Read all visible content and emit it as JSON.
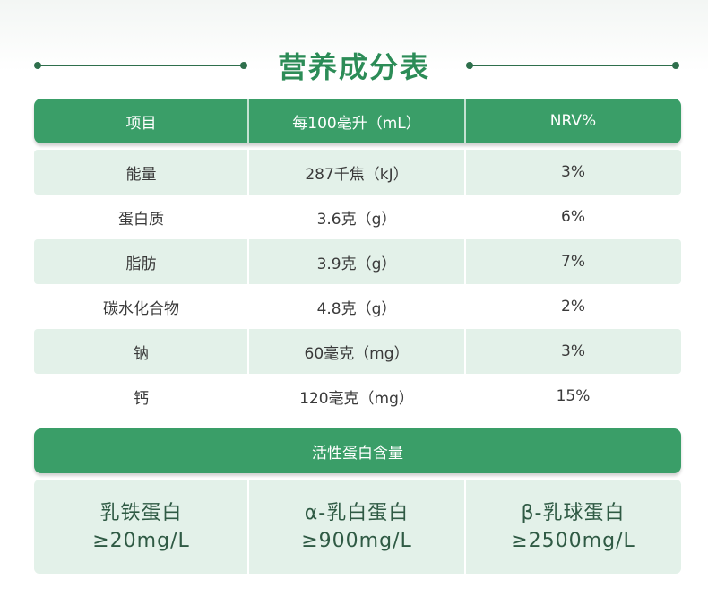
{
  "title": "营养成分表",
  "table": {
    "header": [
      "项目",
      "每100毫升（mL）",
      "NRV%"
    ],
    "rows": [
      [
        "能量",
        "287千焦（kJ）",
        "3%"
      ],
      [
        "蛋白质",
        "3.6克（g）",
        "6%"
      ],
      [
        "脂肪",
        "3.9克（g）",
        "7%"
      ],
      [
        "碳水化合物",
        "4.8克（g）",
        "2%"
      ],
      [
        "钠",
        "60毫克（mg）",
        "3%"
      ],
      [
        "钙",
        "120毫克（mg）",
        "15%"
      ]
    ]
  },
  "active_protein": {
    "title": "活性蛋白含量",
    "items": [
      {
        "name": "乳铁蛋白",
        "value": "≥20mg/L"
      },
      {
        "name": "α-乳白蛋白",
        "value": "≥900mg/L"
      },
      {
        "name": "β-乳球蛋白",
        "value": "≥2500mg/L"
      }
    ]
  }
}
